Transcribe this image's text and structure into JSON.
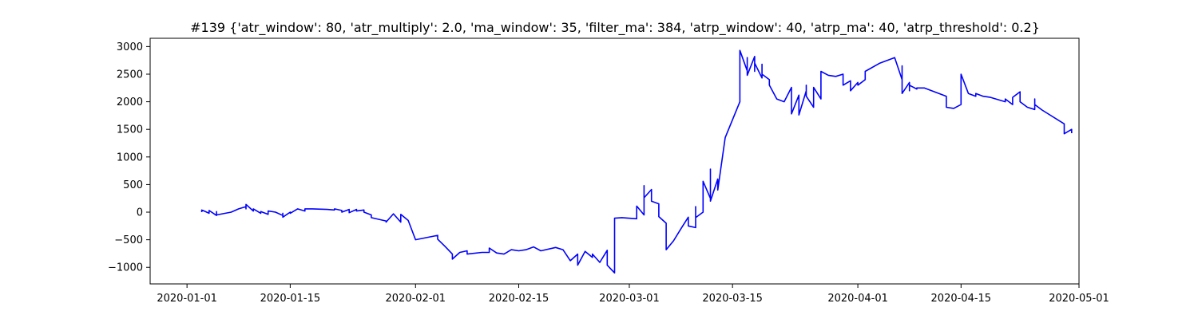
{
  "chart_data": {
    "type": "line",
    "title": "#139 {'atr_window': 80, 'atr_multiply': 2.0, 'ma_window': 35, 'filter_ma': 384, 'atrp_window': 40, 'atrp_ma': 40, 'atrp_threshold': 0.2}",
    "xlabel": "",
    "ylabel": "",
    "xlim": [
      "2019-12-27",
      "2020-05-01"
    ],
    "ylim": [
      -1300,
      3150
    ],
    "grid": false,
    "line_color": "#0000ff",
    "x_ticks": [
      "2020-01-01",
      "2020-01-15",
      "2020-02-01",
      "2020-02-15",
      "2020-03-01",
      "2020-03-15",
      "2020-04-01",
      "2020-04-15",
      "2020-05-01"
    ],
    "y_ticks": [
      -1000,
      -500,
      0,
      500,
      1000,
      1500,
      2000,
      2500,
      3000
    ],
    "series": [
      {
        "x": [
          "2020-01-03",
          "2020-01-03",
          "2020-01-04",
          "2020-01-04",
          "2020-01-05",
          "2020-01-05",
          "2020-01-05",
          "2020-01-07",
          "2020-01-08",
          "2020-01-09",
          "2020-01-09",
          "2020-01-09",
          "2020-01-10",
          "2020-01-10",
          "2020-01-11",
          "2020-01-11",
          "2020-01-12",
          "2020-01-12",
          "2020-01-12",
          "2020-01-13",
          "2020-01-14",
          "2020-01-14",
          "2020-01-14",
          "2020-01-15",
          "2020-01-15",
          "2020-01-16",
          "2020-01-17",
          "2020-01-17",
          "2020-01-18",
          "2020-01-20",
          "2020-01-21",
          "2020-01-21",
          "2020-01-22",
          "2020-01-22",
          "2020-01-23",
          "2020-01-23",
          "2020-01-24",
          "2020-01-24",
          "2020-01-25",
          "2020-01-25",
          "2020-01-26",
          "2020-01-26",
          "2020-01-27",
          "2020-01-28",
          "2020-01-28",
          "2020-01-29",
          "2020-01-30",
          "2020-01-30",
          "2020-01-30",
          "2020-01-30",
          "2020-01-31",
          "2020-02-01",
          "2020-02-04",
          "2020-02-04",
          "2020-02-05",
          "2020-02-06",
          "2020-02-06",
          "2020-02-07",
          "2020-02-08",
          "2020-02-08",
          "2020-02-10",
          "2020-02-11",
          "2020-02-11",
          "2020-02-12",
          "2020-02-13",
          "2020-02-14",
          "2020-02-15",
          "2020-02-16",
          "2020-02-17",
          "2020-02-18",
          "2020-02-20",
          "2020-02-21",
          "2020-02-22",
          "2020-02-23",
          "2020-02-23",
          "2020-02-24",
          "2020-02-25",
          "2020-02-25",
          "2020-02-26",
          "2020-02-27",
          "2020-02-27",
          "2020-02-27",
          "2020-02-28",
          "2020-02-28",
          "2020-02-29",
          "2020-03-02",
          "2020-03-02",
          "2020-03-03",
          "2020-03-03",
          "2020-03-03",
          "2020-03-04",
          "2020-03-04",
          "2020-03-05",
          "2020-03-05",
          "2020-03-06",
          "2020-03-06",
          "2020-03-06",
          "2020-03-07",
          "2020-03-08",
          "2020-03-09",
          "2020-03-09",
          "2020-03-10",
          "2020-03-10",
          "2020-03-10",
          "2020-03-11",
          "2020-03-11",
          "2020-03-12",
          "2020-03-12",
          "2020-03-12",
          "2020-03-13",
          "2020-03-13",
          "2020-03-14",
          "2020-03-16",
          "2020-03-16",
          "2020-03-16",
          "2020-03-17",
          "2020-03-17",
          "2020-03-17",
          "2020-03-18",
          "2020-03-18",
          "2020-03-18",
          "2020-03-19",
          "2020-03-19",
          "2020-03-19",
          "2020-03-20",
          "2020-03-20",
          "2020-03-21",
          "2020-03-22",
          "2020-03-23",
          "2020-03-23",
          "2020-03-23",
          "2020-03-24",
          "2020-03-24",
          "2020-03-25",
          "2020-03-25",
          "2020-03-25",
          "2020-03-26",
          "2020-03-26",
          "2020-03-27",
          "2020-03-27",
          "2020-03-28",
          "2020-03-29",
          "2020-03-30",
          "2020-03-30",
          "2020-03-31",
          "2020-03-31",
          "2020-04-01",
          "2020-04-01",
          "2020-04-02",
          "2020-04-02",
          "2020-04-04",
          "2020-04-06",
          "2020-04-07",
          "2020-04-07",
          "2020-04-07",
          "2020-04-08",
          "2020-04-08",
          "2020-04-08",
          "2020-04-09",
          "2020-04-09",
          "2020-04-10",
          "2020-04-13",
          "2020-04-13",
          "2020-04-14",
          "2020-04-15",
          "2020-04-15",
          "2020-04-16",
          "2020-04-17",
          "2020-04-17",
          "2020-04-18",
          "2020-04-19",
          "2020-04-21",
          "2020-04-21",
          "2020-04-22",
          "2020-04-22",
          "2020-04-23",
          "2020-04-23",
          "2020-04-24",
          "2020-04-25",
          "2020-04-25",
          "2020-04-25",
          "2020-04-26",
          "2020-04-29",
          "2020-04-29",
          "2020-04-29",
          "2020-04-30",
          "2020-04-30"
        ],
        "y": [
          0,
          40,
          -20,
          30,
          -60,
          10,
          -50,
          0,
          60,
          100,
          60,
          140,
          20,
          60,
          -20,
          10,
          -40,
          -10,
          20,
          0,
          -60,
          -20,
          -90,
          0,
          -20,
          60,
          20,
          60,
          60,
          50,
          40,
          60,
          30,
          0,
          50,
          -10,
          50,
          20,
          40,
          0,
          -50,
          -100,
          -130,
          -160,
          -180,
          -30,
          -180,
          -100,
          -120,
          -40,
          -150,
          -500,
          -420,
          -490,
          -620,
          -760,
          -850,
          -730,
          -700,
          -760,
          -730,
          -730,
          -650,
          -740,
          -760,
          -680,
          -700,
          -680,
          -630,
          -700,
          -640,
          -680,
          -880,
          -760,
          -960,
          -710,
          -820,
          -760,
          -910,
          -690,
          -900,
          -960,
          -1100,
          -110,
          -100,
          -120,
          110,
          -50,
          480,
          260,
          410,
          200,
          150,
          -80,
          -200,
          -450,
          -680,
          -520,
          -300,
          -90,
          -250,
          -280,
          100,
          -100,
          0,
          560,
          250,
          780,
          200,
          600,
          400,
          1350,
          2000,
          2450,
          2930,
          2560,
          2800,
          2480,
          2820,
          2550,
          2700,
          2430,
          2680,
          2500,
          2400,
          2300,
          2050,
          2000,
          2260,
          1840,
          1780,
          2120,
          1760,
          2200,
          2300,
          2100,
          1900,
          2260,
          2050,
          2550,
          2480,
          2460,
          2500,
          2300,
          2380,
          2200,
          2350,
          2300,
          2400,
          2550,
          2700,
          2800,
          2400,
          2650,
          2150,
          2350,
          2200,
          2300,
          2230,
          2250,
          2250,
          2100,
          1900,
          1880,
          1950,
          2500,
          2150,
          2100,
          2150,
          2100,
          2080,
          2000,
          2050,
          1950,
          2080,
          2180,
          2000,
          1900,
          1860,
          2050,
          1950,
          1850,
          1600,
          1550,
          1420,
          1500,
          1430
        ]
      }
    ]
  }
}
